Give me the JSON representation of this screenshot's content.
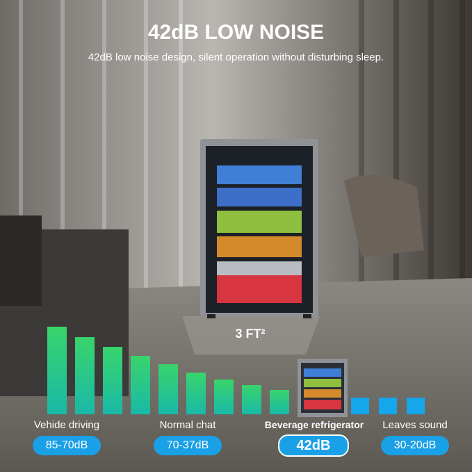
{
  "header": {
    "title": "42dB LOW NOISE",
    "subtitle": "42dB low noise design, silent operation without disturbing sleep."
  },
  "floor_label": "3 FT²",
  "levels": [
    {
      "label": "Vehide driving",
      "range": "85-70dB"
    },
    {
      "label": "Normal chat",
      "range": "70-37dB"
    },
    {
      "label": "Beverage refrigerator",
      "range": "42dB"
    },
    {
      "label": "Leaves sound",
      "range": "30-20dB"
    }
  ]
}
